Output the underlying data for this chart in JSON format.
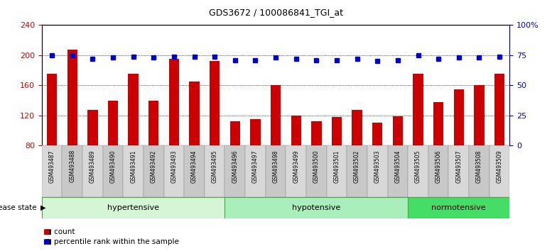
{
  "title": "GDS3672 / 100086841_TGI_at",
  "samples": [
    "GSM493487",
    "GSM493488",
    "GSM493489",
    "GSM493490",
    "GSM493491",
    "GSM493492",
    "GSM493493",
    "GSM493494",
    "GSM493495",
    "GSM493496",
    "GSM493497",
    "GSM493498",
    "GSM493499",
    "GSM493500",
    "GSM493501",
    "GSM493502",
    "GSM493503",
    "GSM493504",
    "GSM493505",
    "GSM493506",
    "GSM493507",
    "GSM493508",
    "GSM493509"
  ],
  "counts": [
    175,
    207,
    127,
    140,
    175,
    140,
    195,
    165,
    192,
    112,
    115,
    160,
    120,
    112,
    118,
    127,
    110,
    119,
    175,
    138,
    155,
    160,
    175
  ],
  "percentiles": [
    75,
    75,
    72,
    73,
    74,
    73,
    74,
    74,
    74,
    71,
    71,
    73,
    72,
    71,
    71,
    72,
    70,
    71,
    75,
    72,
    73,
    73,
    74
  ],
  "groups": [
    {
      "label": "hypertensive",
      "start": 0,
      "end": 9,
      "color_light": "#d6f5d6",
      "color_dark": "#44cc44"
    },
    {
      "label": "hypotensive",
      "start": 9,
      "end": 18,
      "color_light": "#aaeebb",
      "color_dark": "#44cc44"
    },
    {
      "label": "normotensive",
      "start": 18,
      "end": 23,
      "color_light": "#44dd66",
      "color_dark": "#44cc44"
    }
  ],
  "bar_color": "#cc0000",
  "dot_color": "#0000cc",
  "ylim_left": [
    80,
    240
  ],
  "ylim_right": [
    0,
    100
  ],
  "yticks_left": [
    80,
    120,
    160,
    200,
    240
  ],
  "yticks_right": [
    0,
    25,
    50,
    75,
    100
  ],
  "ytick_labels_left": [
    "80",
    "120",
    "160",
    "200",
    "240"
  ],
  "ytick_labels_right": [
    "0",
    "25",
    "50",
    "75",
    "100%"
  ],
  "grid_values": [
    120,
    160,
    200
  ],
  "legend_count_label": "count",
  "legend_pct_label": "percentile rank within the sample",
  "disease_state_label": "disease state"
}
